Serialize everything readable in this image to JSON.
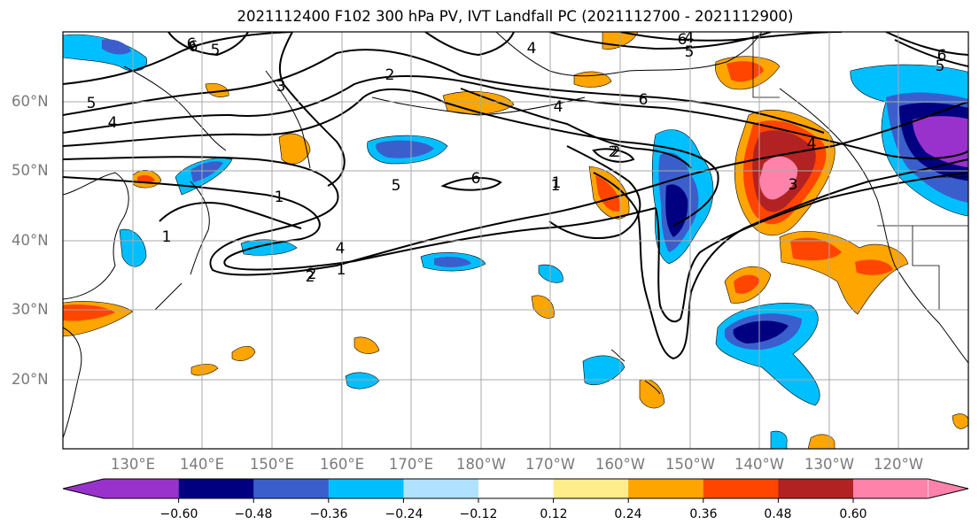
{
  "title": "2021112400 F102 300 hPa PV, IVT Landfall PC (2021112700 - 2021112900)",
  "lat_labels": [
    "60°N",
    "50°N",
    "40°N",
    "30°N",
    "20°N"
  ],
  "lon_labels": [
    "130°E",
    "140°E",
    "150°E",
    "160°E",
    "170°E",
    "180°W",
    "170°W",
    "160°W",
    "150°W",
    "140°W",
    "130°W",
    "120°W"
  ],
  "contour_labels": [
    "6",
    "5",
    "5",
    "4",
    "2",
    "3",
    "1",
    "1",
    "1",
    "1",
    "2",
    "4",
    "5",
    "6",
    "2",
    "4",
    "6",
    "6",
    "4",
    "5",
    "6",
    "5",
    "4",
    "3",
    "4",
    "6",
    "2",
    "1",
    "2"
  ],
  "colorbar": {
    "ticks": [
      "−0.60",
      "−0.48",
      "−0.36",
      "−0.24",
      "−0.12",
      "0.12",
      "0.24",
      "0.36",
      "0.48",
      "0.60"
    ],
    "colors": [
      "#9932cc",
      "#000080",
      "#3a5fcd",
      "#00bfff",
      "#b0e2ff",
      "#ffffff",
      "#ffec8b",
      "#ffa500",
      "#ff4500",
      "#b22222",
      "#ff82ab"
    ]
  }
}
